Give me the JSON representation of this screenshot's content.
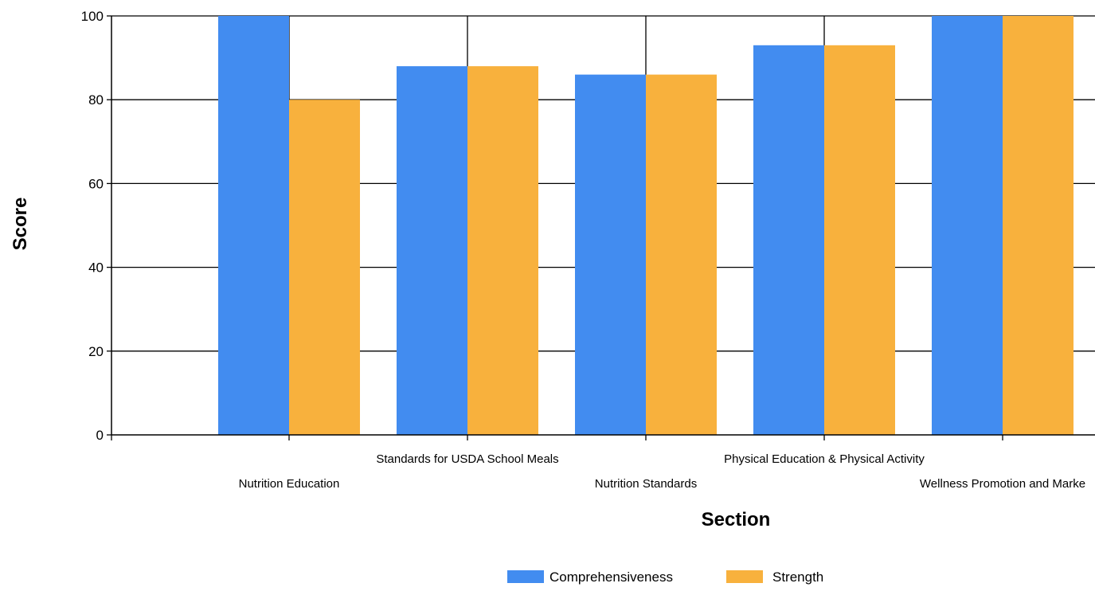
{
  "chart_data": {
    "type": "bar",
    "xlabel": "Section",
    "ylabel": "Score",
    "ylim": [
      0,
      100
    ],
    "yticks": [
      0,
      20,
      40,
      60,
      80,
      100
    ],
    "grid": true,
    "legend_position": "bottom",
    "categories": [
      "Nutrition Education",
      "Standards for USDA School Meals",
      "Nutrition Standards",
      "Physical Education & Physical Activity",
      "Wellness Promotion and Marke"
    ],
    "series": [
      {
        "name": "Comprehensiveness",
        "color": "#428cf0",
        "values": [
          100,
          88,
          86,
          93,
          100
        ]
      },
      {
        "name": "Strength",
        "color": "#f8b13d",
        "values": [
          80,
          88,
          86,
          93,
          100
        ]
      }
    ]
  }
}
